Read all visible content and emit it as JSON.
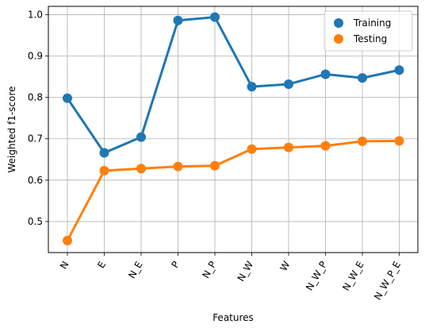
{
  "chart_data": {
    "type": "line",
    "categories": [
      "N",
      "E",
      "N_E",
      "P",
      "N_P",
      "N_W",
      "W",
      "N_W_P",
      "N_W_E",
      "N_W_P_E"
    ],
    "series": [
      {
        "name": "Training",
        "color": "#1f77b4",
        "values": [
          0.798,
          0.666,
          0.704,
          0.986,
          0.994,
          0.826,
          0.832,
          0.856,
          0.847,
          0.866
        ]
      },
      {
        "name": "Testing",
        "color": "#ff7f0e",
        "values": [
          0.454,
          0.623,
          0.628,
          0.633,
          0.635,
          0.675,
          0.679,
          0.683,
          0.694,
          0.695
        ]
      }
    ],
    "xlabel": "Features",
    "ylabel": "Weighted f1-score",
    "ylim": [
      0.425,
      1.02
    ],
    "yticks": [
      "0.5",
      "0.6",
      "0.7",
      "0.8",
      "0.9",
      "1.0"
    ],
    "grid": true,
    "legend_position": "top-right"
  }
}
